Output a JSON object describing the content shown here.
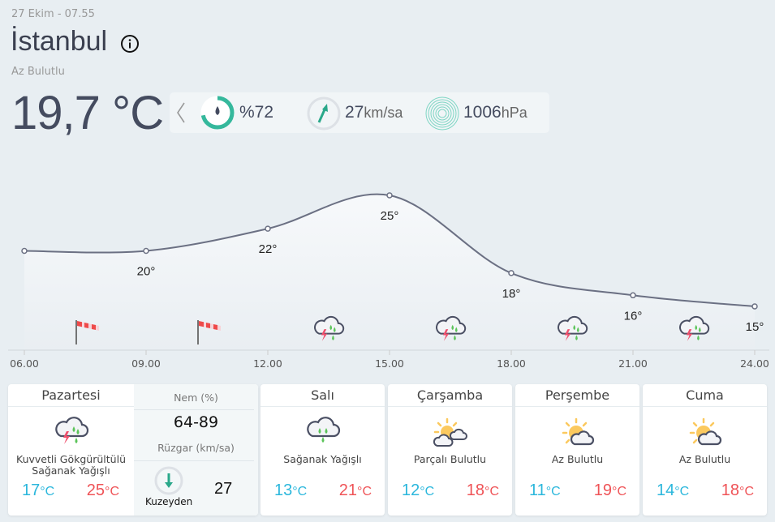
{
  "header": {
    "date": "27 Ekim - 07.55",
    "city": "İstanbul",
    "condition": "Az Bulutlu",
    "temperature": "19,7 °C"
  },
  "current": {
    "humidity": "%72",
    "humidity_percent": 72,
    "wind_value": "27",
    "wind_unit": "km/sa",
    "pressure_value": "1006",
    "pressure_unit": "hPa"
  },
  "colors": {
    "accent": "#35b89c",
    "cold": "#2bb7dc",
    "hot": "#ef5357",
    "line": "#6b7083"
  },
  "chart_data": {
    "type": "line",
    "x": [
      "06.00",
      "09.00",
      "12.00",
      "15.00",
      "18.00",
      "21.00",
      "24.00"
    ],
    "values": [
      20,
      20,
      22,
      25,
      18,
      16,
      15
    ],
    "labels": [
      "",
      "20°",
      "22°",
      "25°",
      "18°",
      "16°",
      "15°"
    ],
    "icons": [
      {
        "hour": 7.5,
        "icon": "windsock-icon"
      },
      {
        "hour": 10.5,
        "icon": "windsock-icon"
      },
      {
        "hour": 13.5,
        "icon": "thunderstorm-icon"
      },
      {
        "hour": 16.5,
        "icon": "thunderstorm-icon"
      },
      {
        "hour": 19.5,
        "icon": "thunderstorm-icon"
      },
      {
        "hour": 22.5,
        "icon": "thunderstorm-icon"
      }
    ]
  },
  "days": [
    {
      "name": "Pazartesi",
      "desc1": "Kuvvetli Gökgürültülü",
      "desc2": "Sağanak Yağışlı",
      "low": "17",
      "high": "25",
      "unit": "°C",
      "icon": "thunderstorm-icon"
    },
    {
      "name": "Salı",
      "desc1": "Sağanak Yağışlı",
      "desc2": "",
      "low": "13",
      "high": "21",
      "unit": "°C",
      "icon": "rain-icon"
    },
    {
      "name": "Çarşamba",
      "desc1": "Parçalı Bulutlu",
      "desc2": "",
      "low": "12",
      "high": "18",
      "unit": "°C",
      "icon": "partly-cloudy-icon"
    },
    {
      "name": "Perşembe",
      "desc1": "Az Bulutlu",
      "desc2": "",
      "low": "11",
      "high": "19",
      "unit": "°C",
      "icon": "mostly-sunny-icon"
    },
    {
      "name": "Cuma",
      "desc1": "Az Bulutlu",
      "desc2": "",
      "low": "14",
      "high": "18",
      "unit": "°C",
      "icon": "mostly-sunny-icon"
    }
  ],
  "detail": {
    "humidity_label": "Nem (%)",
    "humidity_range": "64-89",
    "wind_label": "Rüzgar (km/sa)",
    "wind_dir": "Kuzeyden",
    "wind_speed": "27"
  }
}
